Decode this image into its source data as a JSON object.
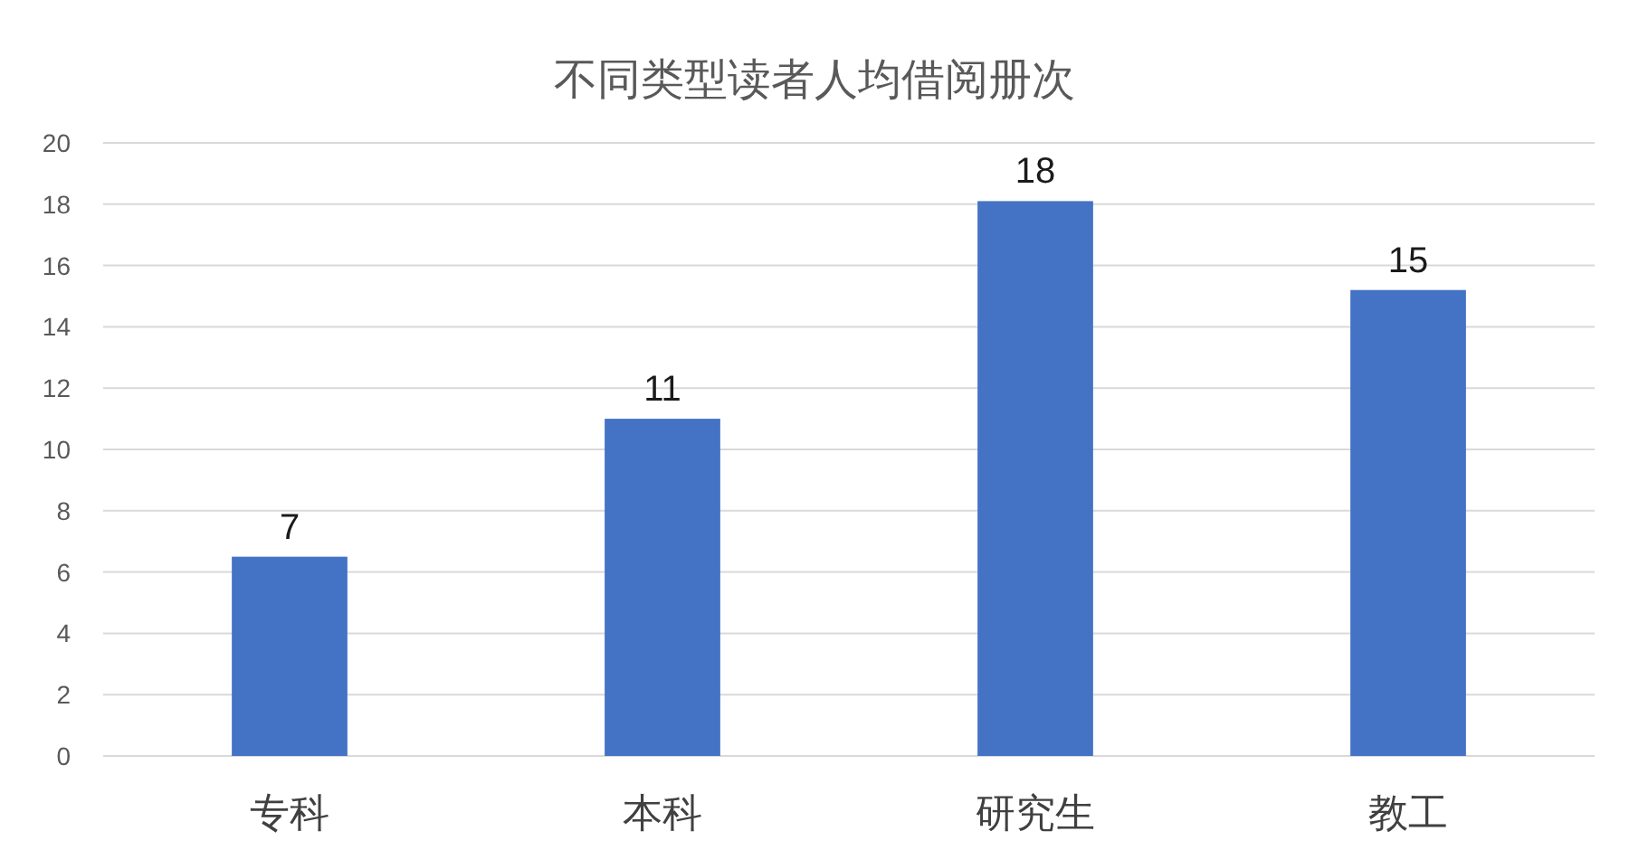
{
  "chart_data": {
    "type": "bar",
    "title": "不同类型读者人均借阅册次",
    "categories": [
      "专科",
      "本科",
      "研究生",
      "教工"
    ],
    "values": [
      6.5,
      11,
      18.1,
      15.2
    ],
    "value_labels": [
      "7",
      "11",
      "18",
      "15"
    ],
    "color": "#4472c4",
    "ylim": [
      0,
      20
    ],
    "yticks": [
      0,
      2,
      4,
      6,
      8,
      10,
      12,
      14,
      16,
      18,
      20
    ],
    "grid": "y"
  }
}
